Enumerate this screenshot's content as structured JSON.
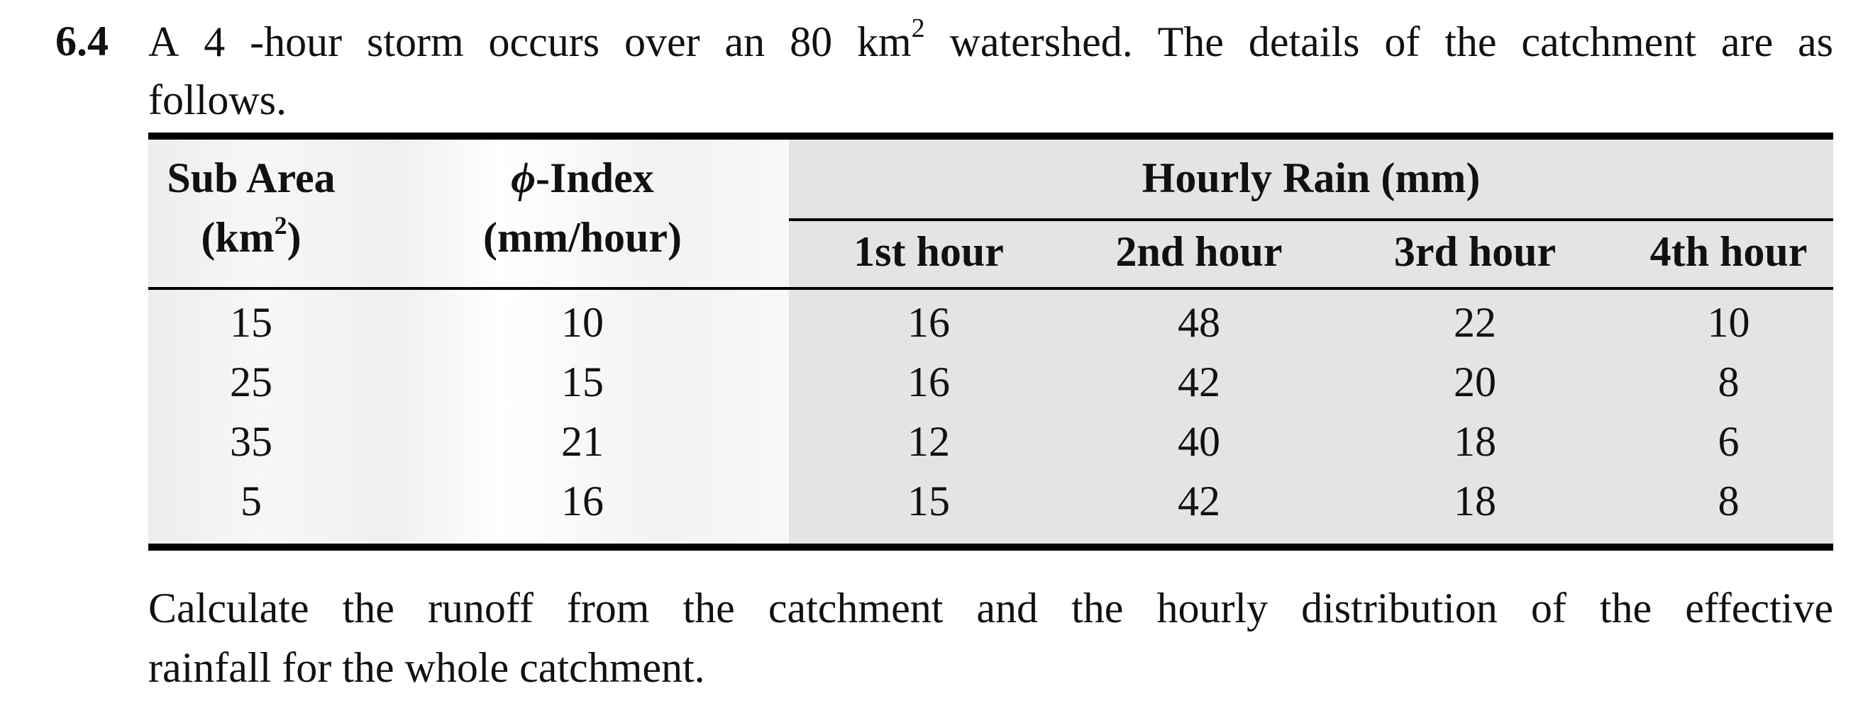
{
  "question": {
    "number": "6.4",
    "line1_words": [
      "A",
      "4",
      "-hour",
      "storm",
      "occurs",
      "over",
      "an",
      "80",
      "km",
      "watershed.",
      "The",
      "details",
      "of",
      "the",
      "catchment",
      "are",
      "as"
    ],
    "km_superscript": "2",
    "line2": "follows."
  },
  "table": {
    "col1_header_line1": "Sub Area",
    "col1_header_line2": "(km",
    "col1_header_sup": "2",
    "col1_header_close": ")",
    "col2_header_symbol": "ϕ",
    "col2_header_line1": "-Index",
    "col2_header_line2": "(mm/hour)",
    "group_header": "Hourly Rain (mm)",
    "hour_headers": [
      "1st hour",
      "2nd hour",
      "3rd hour",
      "4th hour"
    ],
    "rows": [
      [
        "15",
        "10",
        "16",
        "48",
        "22",
        "10"
      ],
      [
        "25",
        "15",
        "16",
        "42",
        "20",
        "8"
      ],
      [
        "35",
        "21",
        "12",
        "40",
        "18",
        "6"
      ],
      [
        "5",
        "16",
        "15",
        "42",
        "18",
        "8"
      ]
    ]
  },
  "closing": {
    "line1_words": [
      "Calculate",
      "the",
      "runoff",
      "from",
      "the",
      "catchment",
      "and",
      "the",
      "hourly",
      "distribution",
      "of",
      "the",
      "effective"
    ],
    "line2": "rainfall for the whole catchment."
  }
}
